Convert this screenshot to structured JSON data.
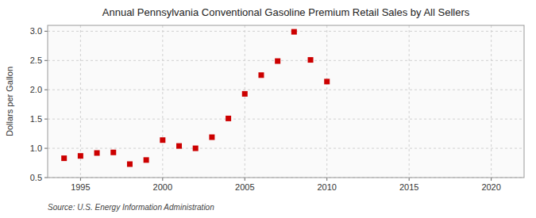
{
  "chart_data": {
    "type": "scatter",
    "title": "Annual Pennsylvania Conventional Gasoline Premium Retail Sales by All Sellers",
    "ylabel": "Dollars per Gallon",
    "source": "Source: U.S. Energy Information Administration",
    "x": [
      1994,
      1995,
      1996,
      1997,
      1998,
      1999,
      2000,
      2001,
      2002,
      2003,
      2004,
      2005,
      2006,
      2007,
      2008,
      2009,
      2010
    ],
    "values": [
      0.83,
      0.87,
      0.92,
      0.93,
      0.73,
      0.8,
      1.14,
      1.04,
      1.0,
      1.19,
      1.51,
      1.93,
      2.25,
      2.49,
      2.99,
      2.51,
      2.14
    ],
    "color": "#cc0000",
    "marker": "square",
    "xlim": [
      1993,
      2022
    ],
    "ylim": [
      0.5,
      3.1
    ],
    "xticks": [
      1995,
      2000,
      2005,
      2010,
      2015,
      2020
    ],
    "yticks": [
      0.5,
      {
        "value": 1.0,
        "label": "1.0"
      },
      1.5,
      {
        "value": 2.0,
        "label": "2.0"
      },
      2.5,
      {
        "value": 3.0,
        "label": "3.0"
      }
    ],
    "grid": true
  }
}
